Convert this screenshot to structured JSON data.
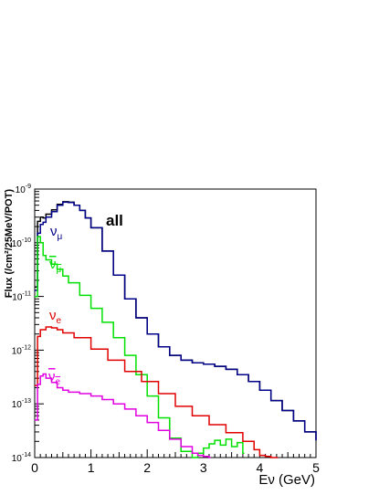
{
  "chart_data": {
    "type": "line",
    "title": "",
    "xlabel": "Eν (GeV)",
    "ylabel": "Flux (/cm²/25MeV/POT)",
    "xlim": [
      0,
      5
    ],
    "ylim": [
      1e-14,
      1e-09
    ],
    "yscale": "log",
    "grid": false,
    "x_ticks": [
      0,
      1,
      2,
      3,
      4,
      5
    ],
    "y_ticks": [
      {
        "value": 1e-14,
        "base": "10",
        "exp": "-14"
      },
      {
        "value": 1e-13,
        "base": "10",
        "exp": "-13"
      },
      {
        "value": 1e-12,
        "base": "10",
        "exp": "-12"
      },
      {
        "value": 1e-11,
        "base": "10",
        "exp": "-11"
      },
      {
        "value": 1e-10,
        "base": "10",
        "exp": "-10"
      },
      {
        "value": 1e-09,
        "base": "10",
        "exp": "-9"
      }
    ],
    "series": [
      {
        "label_main": "all",
        "label_sub": "",
        "overbar": false,
        "color": "#000000",
        "x": [
          0.0,
          0.05,
          0.1,
          0.15,
          0.2,
          0.3,
          0.4,
          0.5,
          0.6,
          0.7,
          0.8,
          0.9,
          1.0,
          1.2,
          1.4,
          1.6,
          1.8,
          2.0,
          2.2,
          2.4,
          2.6,
          2.8,
          3.0,
          3.2,
          3.4,
          3.6,
          3.8,
          4.0,
          4.2,
          4.4,
          4.6,
          4.8,
          5.0
        ],
        "y": [
          1.5e-11,
          2.5e-10,
          3e-10,
          2.9e-10,
          3.4e-10,
          4.1e-10,
          5.2e-10,
          5.8e-10,
          5.7e-10,
          5e-10,
          4e-10,
          2.9e-10,
          1.9e-10,
          7e-11,
          2.5e-11,
          9e-12,
          4e-12,
          2e-12,
          1.15e-12,
          8e-13,
          6.5e-13,
          5.8e-13,
          5.5e-13,
          5e-13,
          4.4e-13,
          3.5e-13,
          2.6e-13,
          1.8e-13,
          1.15e-13,
          7.5e-14,
          4.8e-14,
          3e-14,
          2.1e-14
        ]
      },
      {
        "label_main": "ν",
        "label_sub": "μ",
        "overbar": false,
        "color": "#00008b",
        "x": [
          0.0,
          0.05,
          0.1,
          0.15,
          0.2,
          0.3,
          0.4,
          0.5,
          0.6,
          0.7,
          0.8,
          0.9,
          1.0,
          1.2,
          1.4,
          1.6,
          1.8,
          2.0,
          2.2,
          2.4,
          2.6,
          2.8,
          3.0,
          3.2,
          3.4,
          3.6,
          3.8,
          4.0,
          4.2,
          4.4,
          4.6,
          4.8,
          5.0
        ],
        "y": [
          1.3e-11,
          1.5e-10,
          2.2e-10,
          2.4e-10,
          3e-10,
          3.8e-10,
          5e-10,
          5.7e-10,
          5.6e-10,
          5e-10,
          4e-10,
          2.9e-10,
          1.9e-10,
          7e-11,
          2.5e-11,
          9e-12,
          4e-12,
          2e-12,
          1.15e-12,
          8e-13,
          6.5e-13,
          5.8e-13,
          5.5e-13,
          5e-13,
          4.4e-13,
          3.5e-13,
          2.6e-13,
          1.8e-13,
          1.15e-13,
          7.5e-14,
          4.8e-14,
          3e-14,
          2.1e-14
        ]
      },
      {
        "label_main": "ν",
        "label_sub": "μ",
        "overbar": true,
        "color": "#00e000",
        "x": [
          0.0,
          0.05,
          0.1,
          0.15,
          0.2,
          0.3,
          0.4,
          0.5,
          0.6,
          0.8,
          1.0,
          1.2,
          1.4,
          1.6,
          1.8,
          2.0,
          2.2,
          2.4,
          2.6,
          2.8,
          2.9,
          3.0,
          3.1,
          3.2,
          3.3,
          3.4,
          3.5,
          3.6,
          3.7
        ],
        "y": [
          1e-11,
          1.3e-10,
          1e-10,
          5.8e-11,
          4.8e-11,
          4e-11,
          3.2e-11,
          2.4e-11,
          1.8e-11,
          1.05e-11,
          6e-12,
          3.3e-12,
          1.7e-12,
          8e-13,
          3.5e-13,
          1.4e-13,
          5.5e-14,
          2.3e-14,
          1.3e-14,
          1e-14,
          1.2e-14,
          1.5e-14,
          1.8e-14,
          2.1e-14,
          1.7e-14,
          2.2e-14,
          1.6e-14,
          1.9e-14,
          1.2e-14
        ]
      },
      {
        "label_main": "ν",
        "label_sub": "e",
        "overbar": false,
        "color": "#e00000",
        "x": [
          0.0,
          0.05,
          0.1,
          0.2,
          0.3,
          0.4,
          0.5,
          0.7,
          1.0,
          1.3,
          1.6,
          1.9,
          2.2,
          2.5,
          2.8,
          3.1,
          3.4,
          3.7,
          3.9,
          4.0,
          4.1,
          4.2,
          4.3
        ],
        "y": [
          2.2e-13,
          1.8e-12,
          2.4e-12,
          2.7e-12,
          2.6e-12,
          2.4e-12,
          2.1e-12,
          1.7e-12,
          1.05e-12,
          6.5e-13,
          4e-13,
          2.6e-13,
          1.55e-13,
          9e-14,
          6e-14,
          4.1e-14,
          2.9e-14,
          2e-14,
          1.4e-14,
          1.1e-14,
          1.05e-14,
          1e-14,
          1e-14
        ]
      },
      {
        "label_main": "ν",
        "label_sub": "e",
        "overbar": true,
        "color": "#e000e0",
        "x": [
          0.0,
          0.05,
          0.1,
          0.15,
          0.2,
          0.3,
          0.4,
          0.5,
          0.6,
          0.8,
          1.0,
          1.2,
          1.4,
          1.6,
          1.8,
          2.0,
          2.2,
          2.4,
          2.6,
          2.8,
          2.9,
          3.0,
          3.1
        ],
        "y": [
          5e-14,
          2.3e-13,
          3.3e-13,
          3.6e-13,
          3e-13,
          2.5e-13,
          2e-13,
          1.8e-13,
          1.65e-13,
          1.55e-13,
          1.4e-13,
          1.2e-13,
          1e-13,
          8e-14,
          6e-14,
          4.5e-14,
          3.2e-14,
          2.2e-14,
          1.6e-14,
          1.2e-14,
          1.1e-14,
          1.05e-14,
          1e-14
        ]
      }
    ]
  }
}
